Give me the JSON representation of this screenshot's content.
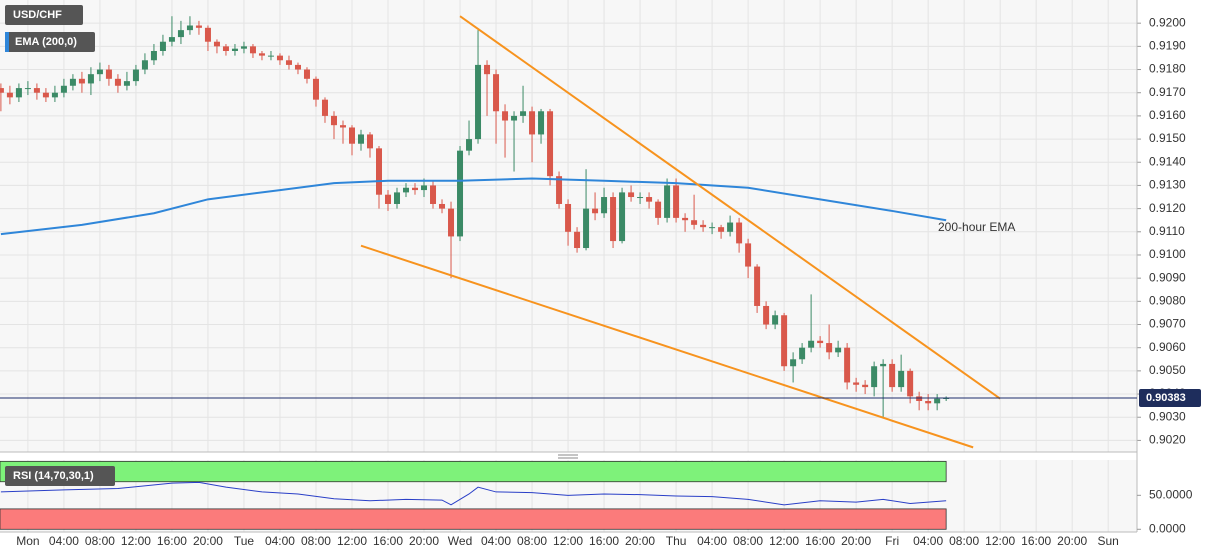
{
  "chart_data": [
    {
      "type": "candlestick",
      "title": "USD/CHF",
      "indicator_label": "EMA (200,0)",
      "up_color": "#3b8a66",
      "down_color": "#d9584b",
      "x": [
        -3,
        -2,
        -1,
        0,
        1,
        2,
        3,
        4,
        5,
        6,
        7,
        8,
        9,
        10,
        11,
        12,
        13,
        14,
        15,
        16,
        17,
        18,
        19,
        20,
        21,
        22,
        23,
        24,
        25,
        26,
        27,
        28,
        29,
        30,
        31,
        32,
        33,
        34,
        35,
        36,
        37,
        38,
        39,
        40,
        41,
        42,
        43,
        44,
        45,
        46,
        47,
        48,
        49,
        50,
        51,
        52,
        53,
        54,
        55,
        56,
        57,
        58,
        59,
        60,
        61,
        62,
        63,
        64,
        65,
        66,
        67,
        68,
        69,
        70,
        71,
        72,
        73,
        74,
        75,
        76,
        77,
        78,
        79,
        80,
        81,
        82,
        83,
        84,
        85,
        86,
        87,
        88,
        89,
        90,
        91,
        92,
        93,
        94,
        95,
        96,
        97,
        98,
        99,
        100,
        101,
        102
      ],
      "candles": [
        [
          0.9172,
          0.9174,
          0.9162,
          0.917
        ],
        [
          0.917,
          0.9173,
          0.9165,
          0.9168
        ],
        [
          0.9168,
          0.9174,
          0.9166,
          0.9172
        ],
        [
          0.9172,
          0.9175,
          0.9169,
          0.9172
        ],
        [
          0.9172,
          0.9174,
          0.9167,
          0.917
        ],
        [
          0.917,
          0.9172,
          0.9166,
          0.9168
        ],
        [
          0.9168,
          0.9173,
          0.9166,
          0.917
        ],
        [
          0.917,
          0.9176,
          0.9168,
          0.9173
        ],
        [
          0.9173,
          0.9178,
          0.9171,
          0.9176
        ],
        [
          0.9176,
          0.9179,
          0.917,
          0.9174
        ],
        [
          0.9174,
          0.9181,
          0.9169,
          0.9178
        ],
        [
          0.9178,
          0.9183,
          0.9175,
          0.918
        ],
        [
          0.918,
          0.9182,
          0.9173,
          0.9176
        ],
        [
          0.9176,
          0.9178,
          0.917,
          0.9173
        ],
        [
          0.9173,
          0.9179,
          0.9171,
          0.9175
        ],
        [
          0.9175,
          0.9182,
          0.9173,
          0.918
        ],
        [
          0.918,
          0.9187,
          0.9178,
          0.9184
        ],
        [
          0.9184,
          0.9191,
          0.9182,
          0.9188
        ],
        [
          0.9188,
          0.9195,
          0.9186,
          0.9192
        ],
        [
          0.9192,
          0.9203,
          0.919,
          0.9194
        ],
        [
          0.9194,
          0.9201,
          0.9191,
          0.9197
        ],
        [
          0.9197,
          0.9203,
          0.9195,
          0.9199
        ],
        [
          0.9199,
          0.9201,
          0.9195,
          0.9198
        ],
        [
          0.9198,
          0.9199,
          0.9188,
          0.9192
        ],
        [
          0.9192,
          0.9193,
          0.9187,
          0.919
        ],
        [
          0.919,
          0.9191,
          0.9186,
          0.9188
        ],
        [
          0.9188,
          0.9191,
          0.9186,
          0.9189
        ],
        [
          0.9189,
          0.9192,
          0.9187,
          0.919
        ],
        [
          0.919,
          0.9191,
          0.9185,
          0.9187
        ],
        [
          0.9187,
          0.9188,
          0.9184,
          0.9186
        ],
        [
          0.9186,
          0.9188,
          0.9184,
          0.9186
        ],
        [
          0.9186,
          0.9187,
          0.9182,
          0.9184
        ],
        [
          0.9184,
          0.9186,
          0.918,
          0.9182
        ],
        [
          0.9182,
          0.9183,
          0.9178,
          0.918
        ],
        [
          0.918,
          0.9181,
          0.9174,
          0.9176
        ],
        [
          0.9176,
          0.9177,
          0.9164,
          0.9167
        ],
        [
          0.9167,
          0.9168,
          0.9157,
          0.916
        ],
        [
          0.916,
          0.9162,
          0.915,
          0.9156
        ],
        [
          0.9156,
          0.9158,
          0.9148,
          0.9155
        ],
        [
          0.9155,
          0.9156,
          0.9143,
          0.9148
        ],
        [
          0.9148,
          0.9154,
          0.9145,
          0.9152
        ],
        [
          0.9152,
          0.9153,
          0.9142,
          0.9146
        ],
        [
          0.9146,
          0.9147,
          0.912,
          0.9126
        ],
        [
          0.9126,
          0.9128,
          0.9119,
          0.9122
        ],
        [
          0.9122,
          0.9129,
          0.912,
          0.9127
        ],
        [
          0.9127,
          0.9131,
          0.9125,
          0.9129
        ],
        [
          0.9129,
          0.9131,
          0.9126,
          0.9128
        ],
        [
          0.9128,
          0.9133,
          0.9125,
          0.913
        ],
        [
          0.913,
          0.9132,
          0.912,
          0.9122
        ],
        [
          0.9122,
          0.9124,
          0.9118,
          0.912
        ],
        [
          0.912,
          0.9123,
          0.909,
          0.9108
        ],
        [
          0.9108,
          0.9147,
          0.9106,
          0.9145
        ],
        [
          0.9145,
          0.9158,
          0.9143,
          0.915
        ],
        [
          0.915,
          0.9197,
          0.9148,
          0.9182
        ],
        [
          0.9182,
          0.9184,
          0.916,
          0.9178
        ],
        [
          0.9178,
          0.918,
          0.9148,
          0.9162
        ],
        [
          0.9162,
          0.9165,
          0.9142,
          0.9158
        ],
        [
          0.9158,
          0.9162,
          0.9136,
          0.916
        ],
        [
          0.916,
          0.9173,
          0.9157,
          0.9162
        ],
        [
          0.9162,
          0.9164,
          0.914,
          0.9152
        ],
        [
          0.9152,
          0.9163,
          0.9148,
          0.9162
        ],
        [
          0.9162,
          0.9163,
          0.913,
          0.9134
        ],
        [
          0.9134,
          0.9136,
          0.912,
          0.9122
        ],
        [
          0.9122,
          0.9124,
          0.9104,
          0.911
        ],
        [
          0.911,
          0.9112,
          0.9101,
          0.9103
        ],
        [
          0.9103,
          0.9137,
          0.9102,
          0.912
        ],
        [
          0.912,
          0.9127,
          0.9115,
          0.9118
        ],
        [
          0.9118,
          0.9129,
          0.9116,
          0.9125
        ],
        [
          0.9125,
          0.9127,
          0.9103,
          0.9106
        ],
        [
          0.9106,
          0.9129,
          0.9105,
          0.9127
        ],
        [
          0.9127,
          0.913,
          0.9123,
          0.9125
        ],
        [
          0.9125,
          0.9127,
          0.9122,
          0.9125
        ],
        [
          0.9125,
          0.9127,
          0.912,
          0.9123
        ],
        [
          0.9123,
          0.9124,
          0.9113,
          0.9116
        ],
        [
          0.9116,
          0.9133,
          0.9114,
          0.913
        ],
        [
          0.913,
          0.9133,
          0.9114,
          0.9116
        ],
        [
          0.9116,
          0.9118,
          0.911,
          0.9115
        ],
        [
          0.9115,
          0.9126,
          0.9111,
          0.9113
        ],
        [
          0.9113,
          0.9115,
          0.911,
          0.9112
        ],
        [
          0.9112,
          0.9114,
          0.9109,
          0.9112
        ],
        [
          0.9112,
          0.9113,
          0.9107,
          0.911
        ],
        [
          0.911,
          0.9117,
          0.9108,
          0.9114
        ],
        [
          0.9114,
          0.9116,
          0.9101,
          0.9105
        ],
        [
          0.9105,
          0.9107,
          0.909,
          0.9095
        ],
        [
          0.9095,
          0.9096,
          0.9075,
          0.9078
        ],
        [
          0.9078,
          0.908,
          0.9068,
          0.907
        ],
        [
          0.907,
          0.9076,
          0.9068,
          0.9074
        ],
        [
          0.9074,
          0.9075,
          0.905,
          0.9052
        ],
        [
          0.9052,
          0.9058,
          0.9045,
          0.9055
        ],
        [
          0.9055,
          0.9062,
          0.9053,
          0.906
        ],
        [
          0.906,
          0.9083,
          0.9058,
          0.9063
        ],
        [
          0.9063,
          0.9065,
          0.906,
          0.9062
        ],
        [
          0.9062,
          0.907,
          0.9055,
          0.9058
        ],
        [
          0.9058,
          0.9063,
          0.9056,
          0.906
        ],
        [
          0.906,
          0.9062,
          0.9042,
          0.9045
        ],
        [
          0.9045,
          0.9047,
          0.9041,
          0.9044
        ],
        [
          0.9044,
          0.9046,
          0.904,
          0.9043
        ],
        [
          0.9043,
          0.9054,
          0.9039,
          0.9052
        ],
        [
          0.9052,
          0.9055,
          0.903,
          0.9053
        ],
        [
          0.9053,
          0.9055,
          0.9041,
          0.9043
        ],
        [
          0.9043,
          0.9057,
          0.9041,
          0.905
        ],
        [
          0.905,
          0.9051,
          0.9036,
          0.9039
        ],
        [
          0.9039,
          0.9041,
          0.9033,
          0.9037
        ],
        [
          0.9037,
          0.904,
          0.9033,
          0.9036
        ],
        [
          0.9036,
          0.904,
          0.9033,
          0.9038
        ],
        [
          0.9038,
          0.9039,
          0.9037,
          0.90383
        ]
      ],
      "ema": {
        "name": "200-hour EMA",
        "color": "#2f86d9",
        "x": [
          -3,
          6,
          14,
          20,
          28,
          34,
          40,
          48,
          56,
          64,
          72,
          80,
          88,
          96,
          102
        ],
        "values": [
          0.9109,
          0.9113,
          0.9118,
          0.9124,
          0.9128,
          0.9131,
          0.9132,
          0.9132,
          0.9133,
          0.9132,
          0.9131,
          0.9129,
          0.9124,
          0.9119,
          0.9115
        ]
      },
      "trendlines": {
        "color": "#f7931e",
        "lines": [
          {
            "x": [
              48,
              108
            ],
            "values": [
              0.9203,
              0.9038
            ]
          },
          {
            "x": [
              37,
              105
            ],
            "values": [
              0.9104,
              0.9017
            ]
          }
        ]
      },
      "last_price": {
        "value": 0.90383,
        "label": "0.90383"
      },
      "xlim": [
        -3.1,
        123.2
      ],
      "ylim": [
        0.9015,
        0.921
      ],
      "yticks": [
        {
          "value": 0.902,
          "label": "0.9020"
        },
        {
          "value": 0.903,
          "label": "0.9030"
        },
        {
          "value": 0.904,
          "label": "0.9040"
        },
        {
          "value": 0.905,
          "label": "0.9050"
        },
        {
          "value": 0.906,
          "label": "0.9060"
        },
        {
          "value": 0.907,
          "label": "0.9070"
        },
        {
          "value": 0.908,
          "label": "0.9080"
        },
        {
          "value": 0.909,
          "label": "0.9090"
        },
        {
          "value": 0.91,
          "label": "0.9100"
        },
        {
          "value": 0.911,
          "label": "0.9110"
        },
        {
          "value": 0.912,
          "label": "0.9120"
        },
        {
          "value": 0.913,
          "label": "0.9130"
        },
        {
          "value": 0.914,
          "label": "0.9140"
        },
        {
          "value": 0.915,
          "label": "0.9150"
        },
        {
          "value": 0.916,
          "label": "0.9160"
        },
        {
          "value": 0.917,
          "label": "0.9170"
        },
        {
          "value": 0.918,
          "label": "0.9180"
        },
        {
          "value": 0.919,
          "label": "0.9190"
        },
        {
          "value": 0.92,
          "label": "0.9200"
        }
      ],
      "xticks": [
        {
          "value": 0,
          "label": "Mon"
        },
        {
          "value": 4,
          "label": "04:00"
        },
        {
          "value": 8,
          "label": "08:00"
        },
        {
          "value": 12,
          "label": "12:00"
        },
        {
          "value": 16,
          "label": "16:00"
        },
        {
          "value": 20,
          "label": "20:00"
        },
        {
          "value": 24,
          "label": "Tue"
        },
        {
          "value": 28,
          "label": "04:00"
        },
        {
          "value": 32,
          "label": "08:00"
        },
        {
          "value": 36,
          "label": "12:00"
        },
        {
          "value": 40,
          "label": "16:00"
        },
        {
          "value": 44,
          "label": "20:00"
        },
        {
          "value": 48,
          "label": "Wed"
        },
        {
          "value": 52,
          "label": "04:00"
        },
        {
          "value": 56,
          "label": "08:00"
        },
        {
          "value": 60,
          "label": "12:00"
        },
        {
          "value": 64,
          "label": "16:00"
        },
        {
          "value": 68,
          "label": "20:00"
        },
        {
          "value": 72,
          "label": "Thu"
        },
        {
          "value": 76,
          "label": "04:00"
        },
        {
          "value": 80,
          "label": "08:00"
        },
        {
          "value": 84,
          "label": "12:00"
        },
        {
          "value": 88,
          "label": "16:00"
        },
        {
          "value": 92,
          "label": "20:00"
        },
        {
          "value": 96,
          "label": "Fri"
        },
        {
          "value": 100,
          "label": "04:00"
        },
        {
          "value": 104,
          "label": "08:00"
        },
        {
          "value": 108,
          "label": "12:00"
        },
        {
          "value": 112,
          "label": "16:00"
        },
        {
          "value": 116,
          "label": "20:00"
        },
        {
          "value": 120,
          "label": "Sun"
        }
      ],
      "grid": true
    },
    {
      "type": "line",
      "title": "RSI (14,70,30,1)",
      "color": "#2a3fc7",
      "overbought": 70,
      "oversold": 30,
      "overbought_color": "#7ef27a",
      "oversold_color": "#fb7b7b",
      "x": [
        -3,
        4,
        10,
        16,
        19,
        22,
        26,
        30,
        34,
        38,
        42,
        46,
        47,
        49,
        50,
        52,
        56,
        60,
        64,
        68,
        72,
        76,
        80,
        84,
        88,
        92,
        95,
        98,
        102
      ],
      "values": [
        55,
        58,
        60,
        68,
        69,
        62,
        55,
        52,
        45,
        42,
        44,
        43,
        36,
        52,
        62,
        55,
        54,
        50,
        52,
        51,
        49,
        48,
        44,
        36,
        42,
        40,
        44,
        38,
        42
      ],
      "ylim": [
        -4,
        102
      ],
      "yticks": [
        {
          "value": 0,
          "label": "0.0000"
        },
        {
          "value": 50,
          "label": "50.0000"
        }
      ]
    }
  ]
}
